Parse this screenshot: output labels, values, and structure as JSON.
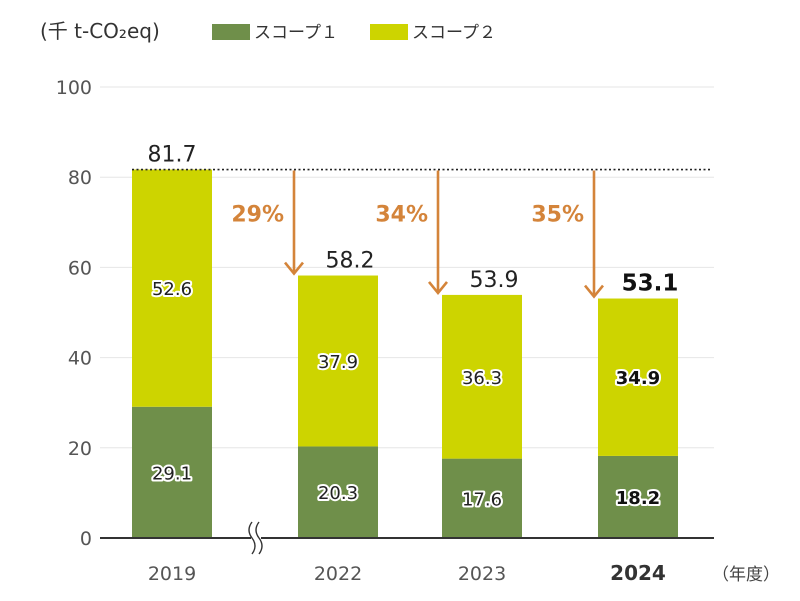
{
  "chart_data": {
    "type": "bar",
    "stacked": true,
    "unit_label": "(千 t-CO₂eq)",
    "x_unit_label": "（年度）",
    "categories": [
      "2019",
      "2022",
      "2023",
      "2024"
    ],
    "highlight_category": "2024",
    "series": [
      {
        "name": "スコープ１",
        "color": "#6f8f4a",
        "values": [
          29.1,
          20.3,
          17.6,
          18.2
        ]
      },
      {
        "name": "スコープ２",
        "color": "#cdd400",
        "values": [
          52.6,
          37.9,
          36.3,
          34.9
        ]
      }
    ],
    "totals": [
      "81.7",
      "58.2",
      "53.9",
      "53.1"
    ],
    "segment_labels": [
      [
        "29.1",
        "20.3",
        "17.6",
        "18.2"
      ],
      [
        "52.6",
        "37.9",
        "36.3",
        "34.9"
      ]
    ],
    "reductions": [
      {
        "category": "2022",
        "label": "29%"
      },
      {
        "category": "2023",
        "label": "34%"
      },
      {
        "category": "2024",
        "label": "35%"
      }
    ],
    "reduction_color": "#d4843a",
    "baseline_value": 81.7,
    "y_ticks": [
      "0",
      "20",
      "40",
      "60",
      "80",
      "100"
    ],
    "ylim": [
      0,
      100
    ],
    "grid": true,
    "axis_break": "between 2019 and 2022",
    "legend_position": "top"
  }
}
